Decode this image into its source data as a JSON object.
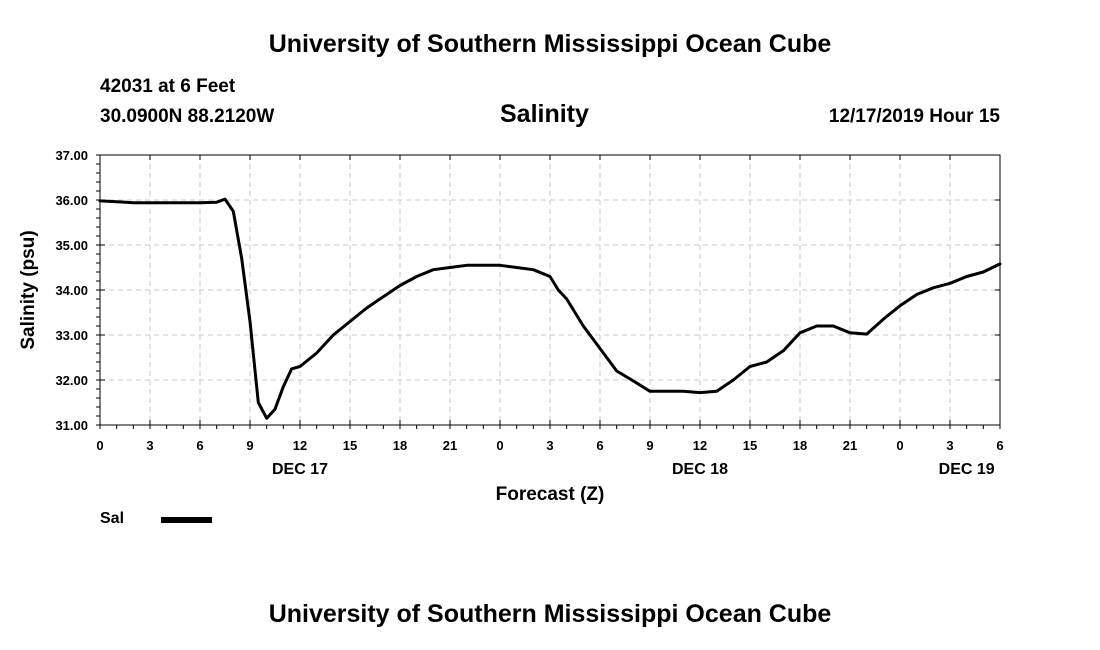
{
  "header": {
    "title": "University of Southern Mississippi Ocean Cube",
    "station": "42031 at 6 Feet",
    "coords": "30.0900N 88.2120W",
    "timestamp": "12/17/2019 Hour 15"
  },
  "footer": {
    "title": "University of Southern Mississippi Ocean Cube"
  },
  "chart_data": {
    "type": "line",
    "title": "Salinity",
    "xlabel": "Forecast (Z)",
    "ylabel": "Salinity (psu)",
    "ylim": [
      31,
      37
    ],
    "xlim": [
      0,
      54
    ],
    "grid": true,
    "legend_position": "bottom-left",
    "y_ticks": [
      "37.00",
      "36.00",
      "35.00",
      "34.00",
      "33.00",
      "32.00",
      "31.00"
    ],
    "x_ticks": [
      "0",
      "3",
      "6",
      "9",
      "12",
      "15",
      "18",
      "21",
      "0",
      "3",
      "6",
      "9",
      "12",
      "15",
      "18",
      "21",
      "0",
      "3",
      "6"
    ],
    "day_labels": [
      {
        "label": "DEC 17",
        "at_hour": 12
      },
      {
        "label": "DEC 18",
        "at_hour": 36
      },
      {
        "label": "DEC 19",
        "at_hour": 52
      }
    ],
    "series": [
      {
        "name": "Sal",
        "color": "#000000",
        "x": [
          0,
          1,
          2,
          3,
          4,
          5,
          6,
          7,
          7.5,
          8,
          8.5,
          9,
          9.5,
          10,
          10.5,
          11,
          11.5,
          12,
          13,
          14,
          15,
          16,
          17,
          18,
          19,
          20,
          21,
          22,
          23,
          24,
          25,
          26,
          27,
          27.5,
          28,
          29,
          30,
          31,
          32,
          33,
          34,
          35,
          36,
          37,
          38,
          39,
          40,
          41,
          42,
          43,
          44,
          45,
          46,
          47,
          48,
          49,
          50,
          51,
          52,
          53,
          54
        ],
        "values": [
          35.98,
          35.96,
          35.94,
          35.94,
          35.94,
          35.94,
          35.94,
          35.95,
          36.02,
          35.75,
          34.7,
          33.3,
          31.5,
          31.15,
          31.35,
          31.85,
          32.25,
          32.3,
          32.6,
          33.0,
          33.3,
          33.6,
          33.85,
          34.1,
          34.3,
          34.45,
          34.5,
          34.55,
          34.55,
          34.55,
          34.5,
          34.45,
          34.3,
          34.0,
          33.8,
          33.2,
          32.7,
          32.2,
          31.98,
          31.75,
          31.75,
          31.75,
          31.72,
          31.75,
          32.0,
          32.3,
          32.4,
          32.65,
          33.05,
          33.2,
          33.2,
          33.05,
          33.02,
          33.35,
          33.65,
          33.9,
          34.05,
          34.15,
          34.3,
          34.4,
          34.58
        ]
      }
    ]
  }
}
